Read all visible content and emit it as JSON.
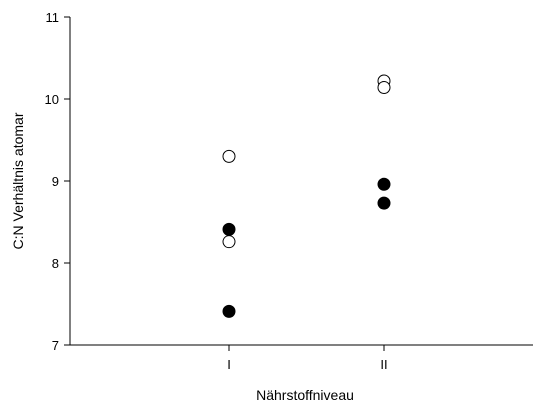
{
  "chart_data": {
    "type": "scatter",
    "title": "",
    "xlabel": "Nährstoffniveau",
    "ylabel": "C:N Verhältnis atomar",
    "categories": [
      "I",
      "II"
    ],
    "ylim": [
      7,
      11
    ],
    "yticks": [
      7,
      8,
      9,
      10,
      11
    ],
    "grid": false,
    "series": [
      {
        "marker": "open-circle",
        "points": [
          {
            "x": "I",
            "y": 9.3
          },
          {
            "x": "I",
            "y": 8.26
          },
          {
            "x": "II",
            "y": 10.22
          },
          {
            "x": "II",
            "y": 10.14
          }
        ]
      },
      {
        "marker": "filled-circle",
        "points": [
          {
            "x": "I",
            "y": 8.41
          },
          {
            "x": "I",
            "y": 7.41
          },
          {
            "x": "II",
            "y": 8.96
          },
          {
            "x": "II",
            "y": 8.73
          }
        ]
      }
    ]
  }
}
